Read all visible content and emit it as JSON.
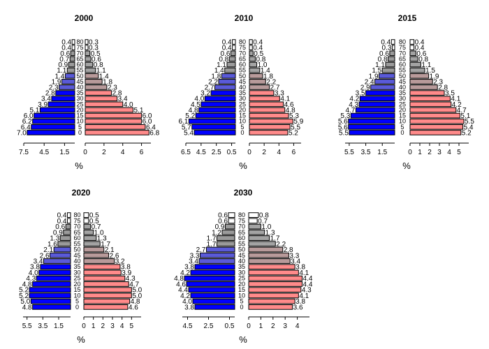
{
  "chart_data": [
    {
      "type": "bar",
      "title": "2000",
      "xlabel": "%",
      "age_groups": [
        "0",
        "5",
        "10",
        "15",
        "20",
        "25",
        "30",
        "35",
        "40",
        "45",
        "50",
        "55",
        "60",
        "65",
        "70",
        "75",
        "80"
      ],
      "left_ticks": [
        "7.5",
        "4.5",
        "1.5"
      ],
      "right_ticks": [
        "0",
        "2",
        "4",
        "6"
      ],
      "left_values": [
        7.0,
        6.4,
        6.2,
        6.0,
        5.1,
        3.9,
        3.4,
        2.8,
        2.3,
        1.9,
        1.4,
        1.1,
        0.9,
        0.7,
        0.6,
        0.4,
        0.4
      ],
      "right_values": [
        6.8,
        6.4,
        6.0,
        6.0,
        5.1,
        4.0,
        3.4,
        2.8,
        2.3,
        1.8,
        1.4,
        1.1,
        0.8,
        0.6,
        0.5,
        0.3,
        0.3
      ],
      "left_max": 7.5,
      "right_max": 7
    },
    {
      "type": "bar",
      "title": "2010",
      "xlabel": "%",
      "age_groups": [
        "0",
        "5",
        "10",
        "15",
        "20",
        "25",
        "30",
        "35",
        "40",
        "45",
        "50",
        "55",
        "60",
        "65",
        "70",
        "75",
        "80"
      ],
      "left_ticks": [
        "6.5",
        "4.5",
        "2.5",
        "0.5"
      ],
      "right_ticks": [
        "0",
        "2",
        "4",
        "6"
      ],
      "left_values": [
        5.4,
        5.7,
        6.1,
        5.2,
        4.8,
        4.5,
        4.0,
        3.2,
        2.7,
        2.2,
        1.8,
        1.4,
        1.1,
        0.8,
        0.6,
        0.4,
        0.4
      ],
      "right_values": [
        5.2,
        5.5,
        5.9,
        5.3,
        4.8,
        4.6,
        4.1,
        3.3,
        2.7,
        2.2,
        1.8,
        1.4,
        1.0,
        0.8,
        0.5,
        0.4,
        0.4
      ],
      "left_max": 6.5,
      "right_max": 7
    },
    {
      "type": "bar",
      "title": "2015",
      "xlabel": "%",
      "age_groups": [
        "0",
        "5",
        "10",
        "15",
        "20",
        "25",
        "30",
        "35",
        "40",
        "45",
        "50",
        "55",
        "60",
        "65",
        "70",
        "75",
        "80"
      ],
      "left_ticks": [
        "5.5",
        "3.5",
        "1.5"
      ],
      "right_ticks": [
        "0",
        "1",
        "2",
        "3",
        "4",
        "5"
      ],
      "left_values": [
        5.5,
        5.6,
        5.6,
        5.3,
        4.7,
        4.3,
        4.2,
        3.5,
        2.9,
        2.4,
        1.9,
        1.5,
        1.1,
        0.8,
        0.6,
        0.3,
        0.4
      ],
      "right_values": [
        5.2,
        5.4,
        5.5,
        5.1,
        4.7,
        4.2,
        4.1,
        3.5,
        2.8,
        2.3,
        1.9,
        1.5,
        1.1,
        0.8,
        0.6,
        0.4,
        0.4
      ],
      "left_max": 6,
      "right_max": 6
    },
    {
      "type": "bar",
      "title": "2020",
      "xlabel": "%",
      "age_groups": [
        "0",
        "5",
        "10",
        "15",
        "20",
        "25",
        "30",
        "35",
        "40",
        "45",
        "50",
        "55",
        "60",
        "65",
        "70",
        "75",
        "80"
      ],
      "left_ticks": [
        "5.5",
        "3.5",
        "1.5"
      ],
      "right_ticks": [
        "0",
        "1",
        "2",
        "3",
        "4",
        "5"
      ],
      "left_values": [
        4.8,
        5.0,
        5.2,
        5.2,
        4.8,
        4.3,
        4.0,
        3.8,
        3.4,
        2.6,
        2.1,
        1.6,
        1.3,
        0.9,
        0.6,
        0.4,
        0.4
      ],
      "right_values": [
        4.6,
        4.8,
        5.0,
        5.0,
        4.7,
        4.3,
        3.9,
        3.8,
        3.2,
        2.6,
        2.1,
        1.7,
        1.3,
        1.0,
        0.7,
        0.5,
        0.5
      ],
      "left_max": 6,
      "right_max": 6
    },
    {
      "type": "bar",
      "title": "2030",
      "xlabel": "%",
      "age_groups": [
        "0",
        "5",
        "10",
        "15",
        "20",
        "25",
        "30",
        "35",
        "40",
        "45",
        "50",
        "55",
        "60",
        "65",
        "70",
        "75",
        "80"
      ],
      "left_ticks": [
        "4.5",
        "2.5",
        "0.5"
      ],
      "right_ticks": [
        "0",
        "1",
        "2",
        "3",
        "4"
      ],
      "left_values": [
        3.8,
        4.0,
        4.2,
        4.4,
        4.6,
        4.8,
        4.2,
        3.8,
        3.4,
        3.3,
        2.7,
        1.7,
        1.7,
        1.2,
        0.9,
        0.6,
        0.6
      ],
      "right_values": [
        3.6,
        3.8,
        4.1,
        4.3,
        4.4,
        4.4,
        4.1,
        3.8,
        3.4,
        3.3,
        2.8,
        2.2,
        1.7,
        1.3,
        1.0,
        0.7,
        0.8
      ],
      "left_max": 5,
      "right_max": 5
    }
  ],
  "colors": {
    "left_young": "#0000ff",
    "left_mid": "#5a5ad8",
    "left_old": "#9a9a9a",
    "left_oldest": "#ffffff",
    "right_young": "#ff8a8a",
    "right_mid": "#b89a9a",
    "right_old": "#a3a3a3",
    "right_oldest": "#ffffff",
    "edge": "#000000"
  }
}
